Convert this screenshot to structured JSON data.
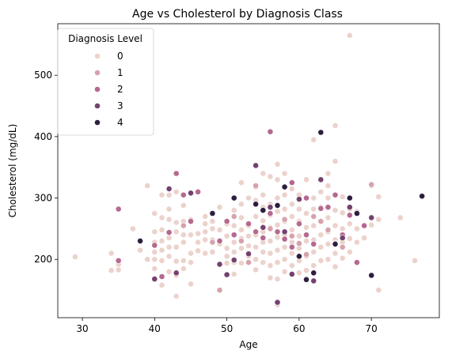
{
  "chart_data": {
    "type": "scatter",
    "title": "Age vs Cholesterol by Diagnosis Class",
    "xlabel": "Age",
    "ylabel": "Cholesterol (mg/dL)",
    "xlim": [
      26.6,
      79.4
    ],
    "ylim": [
      105,
      584
    ],
    "xticks": [
      30,
      40,
      50,
      60,
      70
    ],
    "yticks": [
      200,
      300,
      400,
      500
    ],
    "grid": false,
    "legend": {
      "title": "Diagnosis Level",
      "placement": "top-left"
    },
    "series": [
      {
        "name": "0",
        "color": "#ecd2cc",
        "points": [
          [
            29,
            204
          ],
          [
            34,
            182
          ],
          [
            34,
            210
          ],
          [
            35,
            183
          ],
          [
            35,
            192
          ],
          [
            37,
            250
          ],
          [
            38,
            215
          ],
          [
            39,
            320
          ],
          [
            39,
            200
          ],
          [
            40,
            275
          ],
          [
            40,
            245
          ],
          [
            40,
            228
          ],
          [
            40,
            212
          ],
          [
            40,
            200
          ],
          [
            40,
            185
          ],
          [
            41,
            305
          ],
          [
            41,
            268
          ],
          [
            41,
            248
          ],
          [
            41,
            230
          ],
          [
            41,
            215
          ],
          [
            41,
            198
          ],
          [
            41,
            172
          ],
          [
            41,
            158
          ],
          [
            42,
            305
          ],
          [
            42,
            282
          ],
          [
            42,
            265
          ],
          [
            42,
            235
          ],
          [
            42,
            220
          ],
          [
            42,
            205
          ],
          [
            42,
            180
          ],
          [
            43,
            310
          ],
          [
            43,
            260
          ],
          [
            43,
            245
          ],
          [
            43,
            220
          ],
          [
            43,
            197
          ],
          [
            43,
            174
          ],
          [
            43,
            140
          ],
          [
            44,
            288
          ],
          [
            44,
            262
          ],
          [
            44,
            240
          ],
          [
            44,
            228
          ],
          [
            44,
            198
          ],
          [
            44,
            185
          ],
          [
            45,
            265
          ],
          [
            45,
            240
          ],
          [
            45,
            210
          ],
          [
            45,
            195
          ],
          [
            45,
            160
          ],
          [
            46,
            242
          ],
          [
            46,
            228
          ],
          [
            46,
            214
          ],
          [
            47,
            270
          ],
          [
            47,
            258
          ],
          [
            47,
            245
          ],
          [
            47,
            232
          ],
          [
            47,
            210
          ],
          [
            48,
            262
          ],
          [
            48,
            250
          ],
          [
            48,
            232
          ],
          [
            48,
            212
          ],
          [
            49,
            285
          ],
          [
            49,
            248
          ],
          [
            49,
            225
          ],
          [
            50,
            258
          ],
          [
            50,
            238
          ],
          [
            50,
            218
          ],
          [
            50,
            205
          ],
          [
            50,
            194
          ],
          [
            51,
            300
          ],
          [
            51,
            280
          ],
          [
            51,
            255
          ],
          [
            51,
            228
          ],
          [
            51,
            212
          ],
          [
            51,
            195
          ],
          [
            51,
            176
          ],
          [
            52,
            325
          ],
          [
            52,
            290
          ],
          [
            52,
            268
          ],
          [
            52,
            248
          ],
          [
            52,
            234
          ],
          [
            52,
            218
          ],
          [
            52,
            194
          ],
          [
            53,
            300
          ],
          [
            53,
            255
          ],
          [
            53,
            238
          ],
          [
            53,
            222
          ],
          [
            53,
            205
          ],
          [
            54,
            318
          ],
          [
            54,
            296
          ],
          [
            54,
            270
          ],
          [
            54,
            240
          ],
          [
            54,
            220
          ],
          [
            54,
            200
          ],
          [
            54,
            183
          ],
          [
            55,
            340
          ],
          [
            55,
            305
          ],
          [
            55,
            285
          ],
          [
            55,
            263
          ],
          [
            55,
            245
          ],
          [
            55,
            228
          ],
          [
            55,
            212
          ],
          [
            55,
            195
          ],
          [
            56,
            335
          ],
          [
            56,
            290
          ],
          [
            56,
            272
          ],
          [
            56,
            252
          ],
          [
            56,
            230
          ],
          [
            56,
            210
          ],
          [
            56,
            190
          ],
          [
            56,
            170
          ],
          [
            57,
            355
          ],
          [
            57,
            330
          ],
          [
            57,
            300
          ],
          [
            57,
            278
          ],
          [
            57,
            256
          ],
          [
            57,
            236
          ],
          [
            57,
            215
          ],
          [
            57,
            195
          ],
          [
            57,
            168
          ],
          [
            57,
            126
          ],
          [
            58,
            340
          ],
          [
            58,
            305
          ],
          [
            58,
            282
          ],
          [
            58,
            262
          ],
          [
            58,
            240
          ],
          [
            58,
            220
          ],
          [
            58,
            200
          ],
          [
            58,
            180
          ],
          [
            59,
            315
          ],
          [
            59,
            290
          ],
          [
            59,
            270
          ],
          [
            59,
            248
          ],
          [
            59,
            228
          ],
          [
            59,
            210
          ],
          [
            59,
            190
          ],
          [
            60,
            305
          ],
          [
            60,
            282
          ],
          [
            60,
            262
          ],
          [
            60,
            238
          ],
          [
            60,
            218
          ],
          [
            60,
            198
          ],
          [
            60,
            178
          ],
          [
            61,
            330
          ],
          [
            61,
            300
          ],
          [
            61,
            275
          ],
          [
            61,
            252
          ],
          [
            61,
            230
          ],
          [
            61,
            205
          ],
          [
            61,
            182
          ],
          [
            62,
            395
          ],
          [
            62,
            300
          ],
          [
            62,
            282
          ],
          [
            62,
            255
          ],
          [
            62,
            232
          ],
          [
            62,
            212
          ],
          [
            62,
            190
          ],
          [
            63,
            310
          ],
          [
            63,
            285
          ],
          [
            63,
            262
          ],
          [
            63,
            240
          ],
          [
            63,
            220
          ],
          [
            63,
            198
          ],
          [
            64,
            340
          ],
          [
            64,
            320
          ],
          [
            64,
            300
          ],
          [
            64,
            268
          ],
          [
            64,
            245
          ],
          [
            64,
            225
          ],
          [
            64,
            200
          ],
          [
            65,
            418
          ],
          [
            65,
            360
          ],
          [
            65,
            280
          ],
          [
            65,
            255
          ],
          [
            65,
            232
          ],
          [
            65,
            210
          ],
          [
            65,
            188
          ],
          [
            66,
            302
          ],
          [
            66,
            276
          ],
          [
            66,
            250
          ],
          [
            66,
            228
          ],
          [
            66,
            202
          ],
          [
            67,
            565
          ],
          [
            67,
            282
          ],
          [
            67,
            258
          ],
          [
            67,
            234
          ],
          [
            67,
            212
          ],
          [
            68,
            278
          ],
          [
            68,
            250
          ],
          [
            68,
            228
          ],
          [
            69,
            235
          ],
          [
            70,
            320
          ],
          [
            70,
            256
          ],
          [
            71,
            302
          ],
          [
            71,
            265
          ],
          [
            71,
            150
          ],
          [
            74,
            268
          ],
          [
            76,
            198
          ]
        ]
      },
      {
        "name": "1",
        "color": "#d6a2ac",
        "points": [
          [
            44,
            255
          ],
          [
            48,
            228
          ],
          [
            49,
            150
          ],
          [
            51,
            270
          ],
          [
            52,
            230
          ],
          [
            53,
            195
          ],
          [
            54,
            320
          ],
          [
            56,
            250
          ],
          [
            58,
            265
          ],
          [
            59,
            238
          ],
          [
            60,
            226
          ],
          [
            61,
            208
          ],
          [
            62,
            270
          ],
          [
            63,
            262
          ],
          [
            64,
            248
          ],
          [
            65,
            226
          ],
          [
            66,
            220
          ],
          [
            70,
            322
          ]
        ]
      },
      {
        "name": "2",
        "color": "#b5698f",
        "points": [
          [
            35,
            282
          ],
          [
            35,
            198
          ],
          [
            40,
            223
          ],
          [
            41,
            172
          ],
          [
            42,
            244
          ],
          [
            43,
            340
          ],
          [
            44,
            305
          ],
          [
            45,
            262
          ],
          [
            46,
            310
          ],
          [
            49,
            230
          ],
          [
            50,
            262
          ],
          [
            51,
            240
          ],
          [
            53,
            258
          ],
          [
            54,
            245
          ],
          [
            55,
            235
          ],
          [
            56,
            408
          ],
          [
            56,
            275
          ],
          [
            57,
            245
          ],
          [
            58,
            233
          ],
          [
            59,
            325
          ],
          [
            59,
            220
          ],
          [
            60,
            258
          ],
          [
            61,
            300
          ],
          [
            61,
            240
          ],
          [
            62,
            225
          ],
          [
            63,
            283
          ],
          [
            64,
            285
          ],
          [
            65,
            305
          ],
          [
            66,
            240
          ],
          [
            67,
            272
          ],
          [
            68,
            195
          ],
          [
            69,
            255
          ]
        ]
      },
      {
        "name": "3",
        "color": "#74426f",
        "points": [
          [
            40,
            168
          ],
          [
            42,
            315
          ],
          [
            43,
            178
          ],
          [
            45,
            308
          ],
          [
            49,
            192
          ],
          [
            50,
            175
          ],
          [
            51,
            199
          ],
          [
            53,
            209
          ],
          [
            54,
            353
          ],
          [
            55,
            252
          ],
          [
            56,
            285
          ],
          [
            57,
            130
          ],
          [
            58,
            245
          ],
          [
            59,
            176
          ],
          [
            60,
            298
          ],
          [
            61,
            168
          ],
          [
            62,
            165
          ],
          [
            63,
            330
          ],
          [
            66,
            235
          ],
          [
            67,
            285
          ],
          [
            70,
            268
          ]
        ]
      },
      {
        "name": "4",
        "color": "#2d1e3e",
        "points": [
          [
            38,
            230
          ],
          [
            48,
            275
          ],
          [
            51,
            300
          ],
          [
            54,
            290
          ],
          [
            55,
            280
          ],
          [
            57,
            288
          ],
          [
            58,
            318
          ],
          [
            60,
            205
          ],
          [
            61,
            167
          ],
          [
            62,
            178
          ],
          [
            63,
            407
          ],
          [
            65,
            225
          ],
          [
            67,
            300
          ],
          [
            68,
            275
          ],
          [
            70,
            174
          ],
          [
            77,
            303
          ]
        ]
      }
    ]
  }
}
